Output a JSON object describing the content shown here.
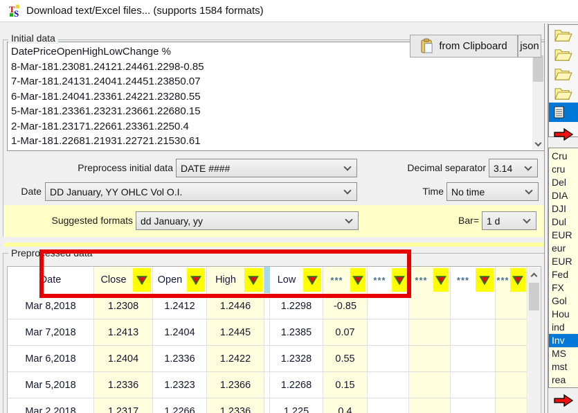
{
  "window": {
    "title": "Download text/Excel files... (supports 1584 formats)"
  },
  "initial_data": {
    "group_label": "Initial data",
    "lines": [
      "DatePriceOpenHighLowChange %",
      "8-Mar-181.23081.24121.24461.2298-0.85",
      "7-Mar-181.24131.24041.24451.23850.07",
      "6-Mar-181.24041.23361.24221.23280.55",
      "5-Mar-181.23361.23231.23661.22680.15",
      "2-Mar-181.23171.22661.23361.2250.4",
      "1-Mar-181.22681.21931.22721.21530.61"
    ],
    "from_clipboard_label": "from Clipboard",
    "json_label": "json"
  },
  "controls": {
    "preprocess_label": "Preprocess initial data",
    "preprocess_value": "DATE ####",
    "decimal_separator_label": "Decimal separator",
    "decimal_separator_value": "3.14",
    "date_label": "Date",
    "date_value": "DD January, YY  OHLC Vol O.I.",
    "time_label": "Time",
    "time_value": "No time",
    "suggested_formats_label": "Suggested formats",
    "suggested_formats_value": "dd January, yy",
    "bar_label": "Bar=",
    "bar_value": "1 d"
  },
  "preprocessed": {
    "group_label": "Preprocessed data",
    "columns": [
      {
        "label": "Date",
        "has_filter": false
      },
      {
        "label": "Close",
        "has_filter": true
      },
      {
        "label": "Open",
        "has_filter": true
      },
      {
        "label": "High",
        "has_filter": true
      },
      {
        "label": "Low",
        "has_filter": true
      },
      {
        "label": "***",
        "has_filter": true
      },
      {
        "label": "***",
        "has_filter": true
      },
      {
        "label": "***",
        "has_filter": true
      },
      {
        "label": "***",
        "has_filter": true
      },
      {
        "label": "***",
        "has_filter": true
      }
    ],
    "rows": [
      [
        "Mar 8,2018",
        "1.2308",
        "1.2412",
        "1.2446",
        "1.2298",
        "-0.85",
        "",
        "",
        "",
        ""
      ],
      [
        "Mar 7,2018",
        "1.2413",
        "1.2404",
        "1.2445",
        "1.2385",
        "0.07",
        "",
        "",
        "",
        ""
      ],
      [
        "Mar 6,2018",
        "1.2404",
        "1.2336",
        "1.2422",
        "1.2328",
        "0.55",
        "",
        "",
        "",
        ""
      ],
      [
        "Mar 5,2018",
        "1.2336",
        "1.2323",
        "1.2366",
        "1.2268",
        "0.15",
        "",
        "",
        "",
        ""
      ],
      [
        "Mar 2,2018",
        "1.2317",
        "1.2266",
        "1.2336",
        "1.225",
        "0.4",
        "",
        "",
        "",
        ""
      ]
    ]
  },
  "sidebar": {
    "folder_count": 4,
    "symbols": [
      "Cru",
      "cru",
      "Del",
      "DIA",
      "DJI",
      "Dul",
      "EUR",
      "eur",
      "EUR",
      "Fed",
      "FX",
      "Gol",
      "Hou",
      "ind",
      "Inv",
      "MS",
      "mst",
      "rea"
    ],
    "selected_symbol": "Inv"
  },
  "colors": {
    "selection_blue": "#0078d7",
    "filter_yellow": "#ffff00",
    "band_yellow": "#ffffc8",
    "column_yellow": "#ffffe0",
    "annotation_red": "#e60000",
    "arrow_red": "#ee1111",
    "header_stripe_blue": "#a6d9ee"
  }
}
